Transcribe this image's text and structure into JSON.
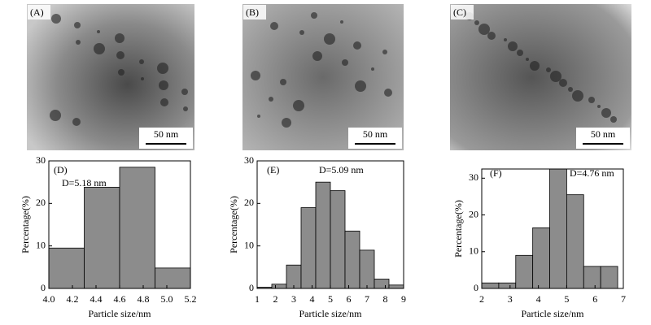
{
  "images": [
    {
      "label": "(A)",
      "scale_bar": "50 nm"
    },
    {
      "label": "(B)",
      "scale_bar": "50 nm"
    },
    {
      "label": "(C)",
      "scale_bar": "50 nm"
    }
  ],
  "chart_data": [
    {
      "type": "histogram",
      "panel_label": "(D)",
      "annotation": "D=5.18 nm",
      "x_label": "Particle size/nm",
      "y_label": "Percentage(%)",
      "color": "#8c8c8c",
      "bins": [
        4.0,
        4.3,
        4.6,
        4.9,
        5.2
      ],
      "values": [
        9.5,
        23.8,
        28.5,
        4.8
      ],
      "xlim": [
        4.0,
        5.2
      ],
      "xticks": [
        {
          "value": 4.0,
          "label": "4.0"
        },
        {
          "value": 4.2,
          "label": "4.2"
        },
        {
          "value": 4.4,
          "label": "4.4"
        },
        {
          "value": 4.6,
          "label": "4.6"
        },
        {
          "value": 4.8,
          "label": "4.8"
        },
        {
          "value": 5.0,
          "label": "5.0"
        },
        {
          "value": 5.2,
          "label": "5.2"
        }
      ],
      "ylim": [
        0,
        30
      ],
      "yticks": [
        0,
        10,
        20,
        30
      ]
    },
    {
      "type": "histogram",
      "panel_label": "(E)",
      "annotation": "D=5.09 nm",
      "x_label": "Particle size/nm",
      "y_label": "Percentage(%)",
      "color": "#8c8c8c",
      "bins": [
        1.0,
        1.8,
        2.6,
        3.4,
        4.2,
        5.0,
        5.8,
        6.6,
        7.4,
        8.2,
        9.0
      ],
      "values": [
        0.3,
        1.0,
        5.5,
        19,
        25,
        23,
        13.5,
        9,
        2.2,
        0.8
      ],
      "xlim": [
        1,
        9
      ],
      "xticks": [
        1,
        2,
        3,
        4,
        5,
        6,
        7,
        8,
        9
      ],
      "ylim": [
        0,
        30
      ],
      "yticks": [
        0,
        10,
        20,
        30
      ]
    },
    {
      "type": "histogram",
      "panel_label": "(F)",
      "annotation": "D=4.76 nm",
      "x_label": "Particle size/nm",
      "y_label": "Percentage(%)",
      "color": "#8c8c8c",
      "bins": [
        2.0,
        2.6,
        3.2,
        3.8,
        4.4,
        5.0,
        5.6,
        6.2,
        6.8
      ],
      "values": [
        1.5,
        1.5,
        9,
        16.5,
        32.5,
        25.5,
        6,
        6
      ],
      "xlim": [
        2,
        7
      ],
      "xticks": [
        2,
        3,
        4,
        5,
        6,
        7
      ],
      "ylim": [
        0,
        32.5
      ],
      "yticks": [
        0,
        10,
        20,
        30
      ]
    }
  ]
}
